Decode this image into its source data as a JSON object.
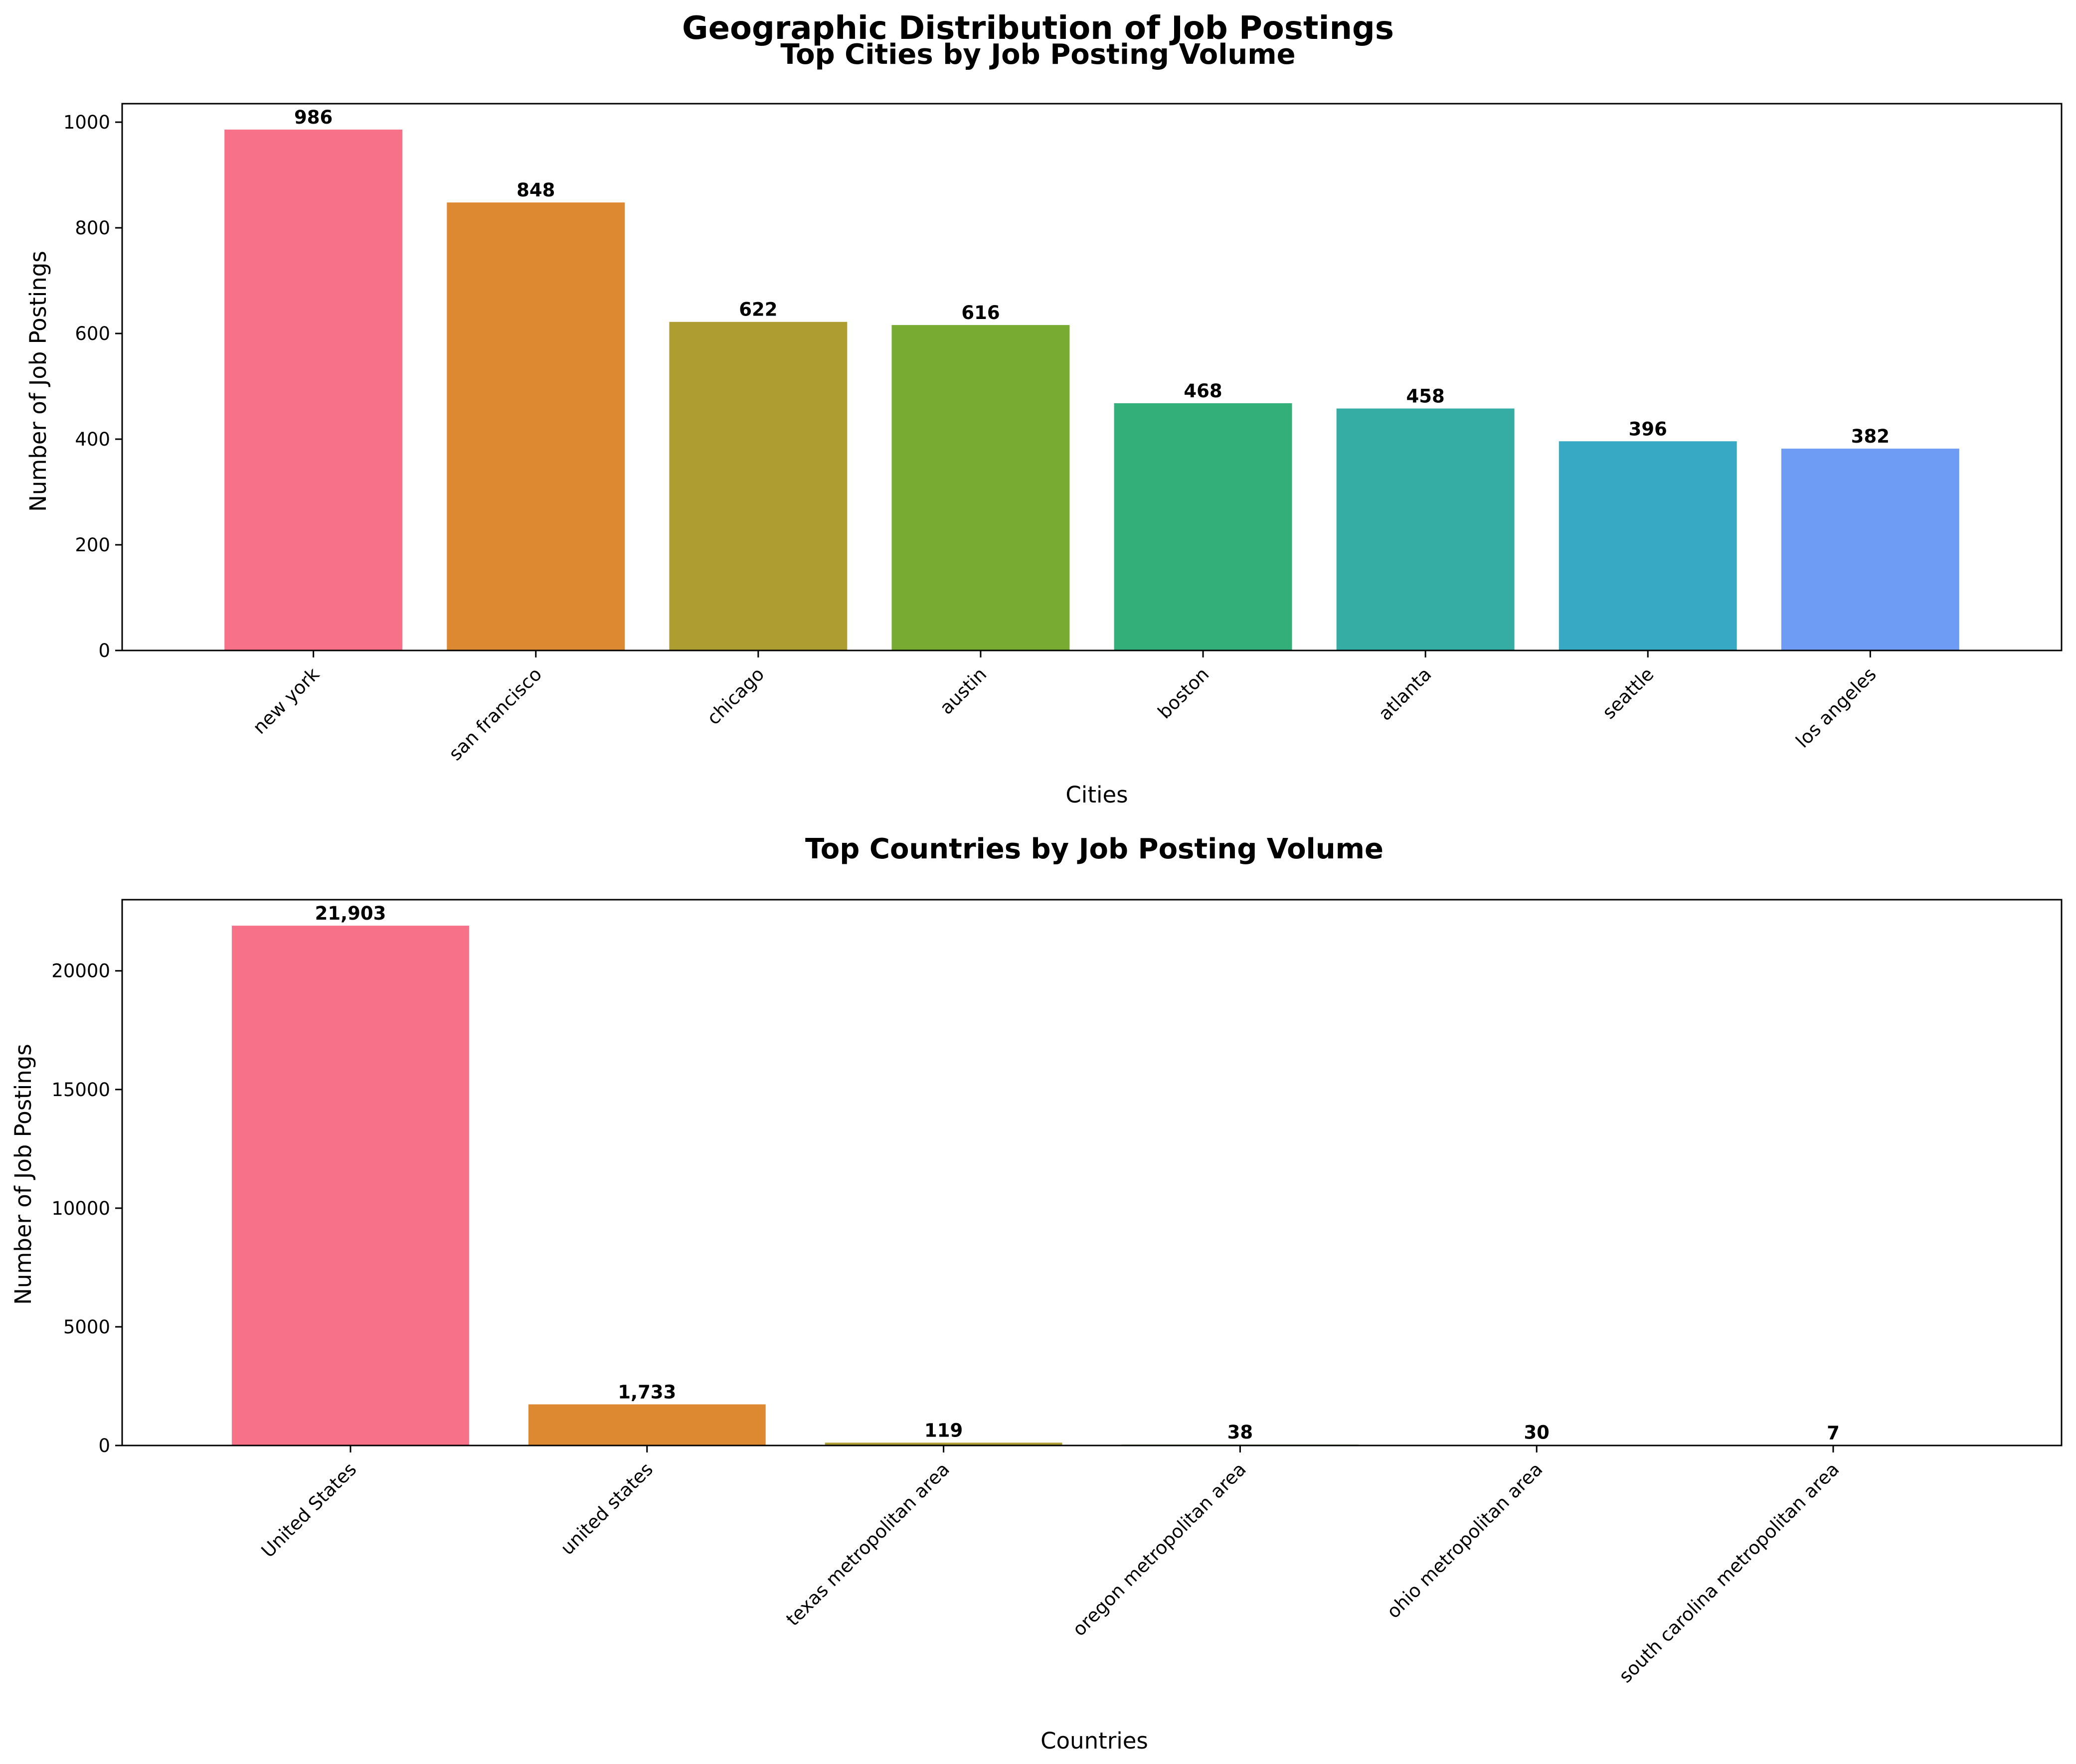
{
  "figure": {
    "suptitle": "Geographic Distribution of Job Postings"
  },
  "chart_data": [
    {
      "type": "bar",
      "title": "Top Cities by Job Posting Volume",
      "xlabel": "Cities",
      "ylabel": "Number of Job Postings",
      "categories": [
        "new york",
        "san francisco",
        "chicago",
        "austin",
        "boston",
        "atlanta",
        "seattle",
        "los angeles"
      ],
      "values": [
        986,
        848,
        622,
        616,
        468,
        458,
        396,
        382
      ],
      "value_labels": [
        "986",
        "848",
        "622",
        "616",
        "468",
        "458",
        "396",
        "382"
      ],
      "yticks": [
        0,
        200,
        400,
        600,
        800,
        1000
      ],
      "ylim": [
        0,
        1035
      ],
      "grid": false,
      "colors": [
        "#f77189",
        "#dc8932",
        "#ae9d31",
        "#77ab31",
        "#33b07a",
        "#36ada4",
        "#38a9c5",
        "#6e9bf4"
      ]
    },
    {
      "type": "bar",
      "title": "Top Countries by Job Posting Volume",
      "xlabel": "Countries",
      "ylabel": "Number of Job Postings",
      "categories": [
        "United States",
        "united states",
        "texas metropolitan area",
        "oregon metropolitan area",
        "ohio metropolitan area",
        "south carolina metropolitan area"
      ],
      "values": [
        21903,
        1733,
        119,
        38,
        30,
        7
      ],
      "value_labels": [
        "21,903",
        "1,733",
        "119",
        "38",
        "30",
        "7"
      ],
      "yticks": [
        0,
        5000,
        10000,
        15000,
        20000
      ],
      "ylim": [
        0,
        22998
      ],
      "grid": false,
      "colors": [
        "#f77189",
        "#dc8932",
        "#ae9d31",
        "#77ab31",
        "#33b07a",
        "#36ada4"
      ]
    }
  ]
}
